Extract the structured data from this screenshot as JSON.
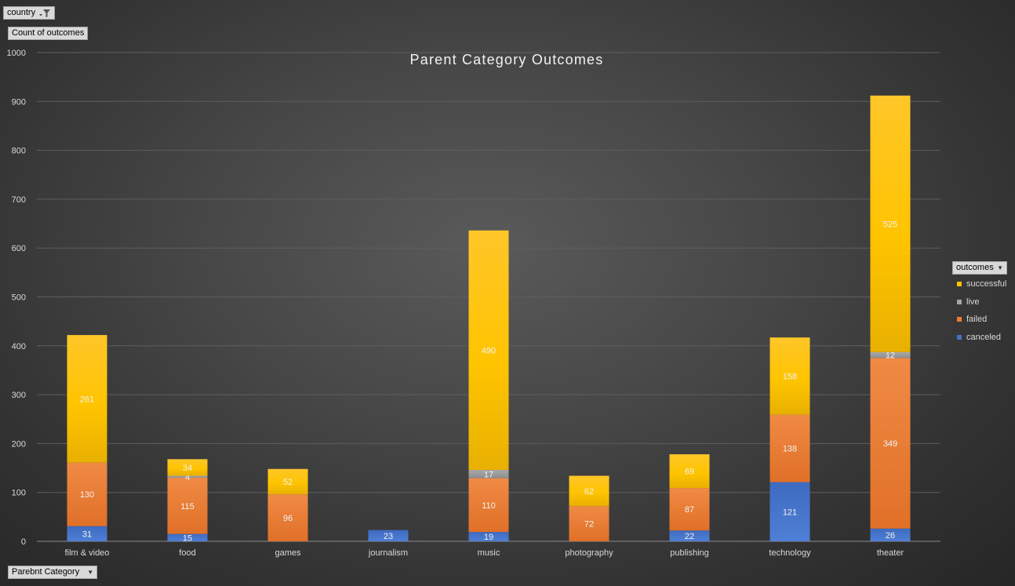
{
  "filter_button": {
    "label": "country",
    "icon": "funnel-filter-icon"
  },
  "value_button": {
    "label": "Count of outcomes"
  },
  "axis_field_button": {
    "label": "Parebnt Category",
    "icon": "dropdown-arrow-icon"
  },
  "legend_field_button": {
    "label": "outcomes",
    "icon": "dropdown-arrow-icon"
  },
  "chart_data": {
    "type": "bar",
    "stacked": true,
    "title": "Parent Category Outcomes",
    "xlabel": "",
    "ylabel": "",
    "ylim": [
      0,
      1000
    ],
    "yticks": [
      0,
      100,
      200,
      300,
      400,
      500,
      600,
      700,
      800,
      900,
      1000
    ],
    "grid": true,
    "legend_position": "right",
    "categories": [
      "film & video",
      "food",
      "games",
      "journalism",
      "music",
      "photography",
      "publishing",
      "technology",
      "theater"
    ],
    "series": [
      {
        "name": "canceled",
        "color": "#4472c4",
        "values": [
          31,
          15,
          0,
          23,
          19,
          0,
          22,
          121,
          26
        ]
      },
      {
        "name": "failed",
        "color": "#ed7d31",
        "values": [
          130,
          115,
          96,
          0,
          110,
          72,
          87,
          138,
          349
        ]
      },
      {
        "name": "live",
        "color": "#a5a5a5",
        "values": [
          0,
          4,
          0,
          0,
          17,
          0,
          0,
          0,
          12
        ]
      },
      {
        "name": "successful",
        "color": "#ffc000",
        "values": [
          261,
          34,
          52,
          0,
          490,
          62,
          69,
          158,
          525
        ]
      }
    ],
    "legend_order": [
      "successful",
      "live",
      "failed",
      "canceled"
    ]
  }
}
